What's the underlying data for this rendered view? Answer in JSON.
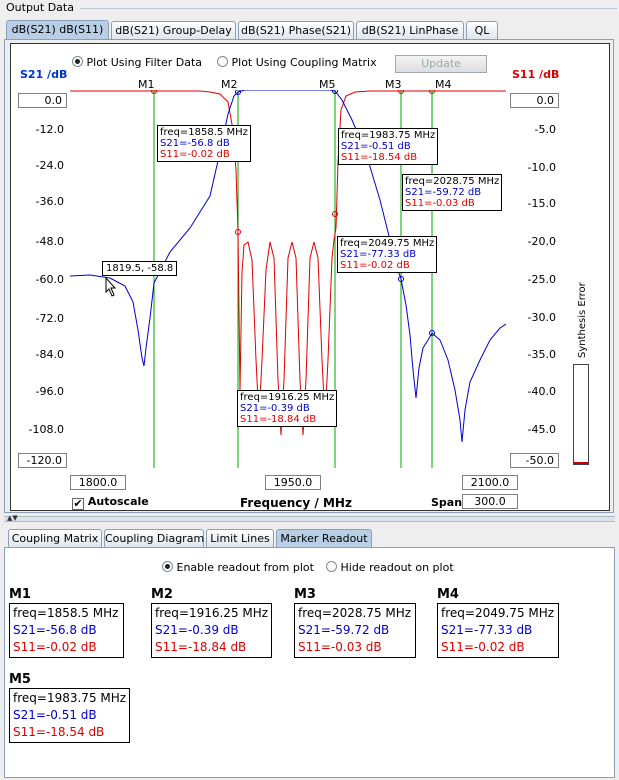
{
  "window": {
    "title": "Output Data"
  },
  "plot_tabs": [
    {
      "label": "dB(S21) dB(S11)",
      "active": true
    },
    {
      "label": "dB(S21) Group-Delay",
      "active": false
    },
    {
      "label": "dB(S21) Phase(S21)",
      "active": false
    },
    {
      "label": "dB(S21) LinPhase",
      "active": false
    },
    {
      "label": "QL",
      "active": false
    }
  ],
  "controls": {
    "filter_data_label": "Plot Using Filter Data",
    "coupling_matrix_label": "Plot Using Coupling Matrix",
    "update_label": "Update",
    "autoscale_label": "Autoscale",
    "autoscale_checked": true,
    "span_label": "Span",
    "span_value": "300.0"
  },
  "axes": {
    "left_title": "S21 /dB",
    "right_title": "S11 /dB",
    "left_top_value": "0.0",
    "left_bottom_value": "-120.0",
    "right_top_value": "0.0",
    "right_bottom_value": "-50.0",
    "left_ticks": [
      "-12.0",
      "-24.0",
      "-36.0",
      "-48.0",
      "-60.0",
      "-72.0",
      "-84.0",
      "-96.0",
      "-108.0"
    ],
    "right_ticks": [
      "-5.0",
      "-10.0",
      "-15.0",
      "-20.0",
      "-25.0",
      "-30.0",
      "-35.0",
      "-40.0",
      "-45.0"
    ],
    "x_left_value": "1800.0",
    "x_center_value": "1950.0",
    "x_right_value": "2100.0",
    "x_title": "Frequency / MHz",
    "synthesis_error_label": "Synthesis Error",
    "colors": {
      "s21": "#0000cc",
      "s11": "#dd0000",
      "marker_line": "#00aa00"
    }
  },
  "markers": [
    {
      "name": "M1",
      "freq": "freq=1858.5 MHz",
      "s21": "S21=-56.8 dB",
      "s11": "S11=-0.02 dB"
    },
    {
      "name": "M2",
      "freq": "freq=1916.25 MHz",
      "s21": "S21=-0.39 dB",
      "s11": "S11=-18.84 dB"
    },
    {
      "name": "M3",
      "freq": "freq=2028.75 MHz",
      "s21": "S21=-59.72 dB",
      "s11": "S11=-0.03 dB"
    },
    {
      "name": "M4",
      "freq": "freq=2049.75 MHz",
      "s21": "S21=-77.33 dB",
      "s11": "S11=-0.02 dB"
    },
    {
      "name": "M5",
      "freq": "freq=1983.75 MHz",
      "s21": "S21=-0.51 dB",
      "s11": "S11=-18.54 dB"
    }
  ],
  "cursor_readout": "1819.5, -58.8",
  "bottom_tabs": [
    {
      "label": "Coupling Matrix",
      "active": false
    },
    {
      "label": "Coupling Diagram",
      "active": false
    },
    {
      "label": "Limit Lines",
      "active": false
    },
    {
      "label": "Marker Readout",
      "active": true
    }
  ],
  "readout": {
    "enable_label": "Enable readout from plot",
    "hide_label": "Hide readout on plot"
  }
}
